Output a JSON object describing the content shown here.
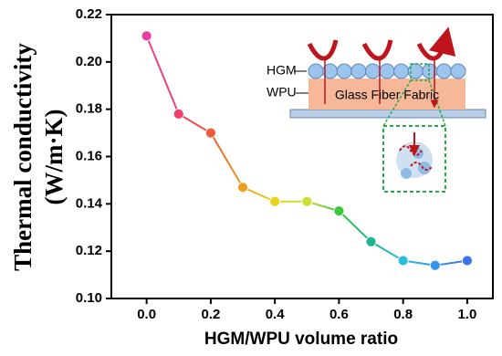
{
  "chart_data": {
    "type": "line",
    "xlabel": "HGM/WPU volume ratio",
    "ylabel": [
      "Thermal conductivity",
      "(W/m·K)"
    ],
    "x": [
      0.0,
      0.1,
      0.2,
      0.3,
      0.4,
      0.5,
      0.6,
      0.7,
      0.8,
      0.9,
      1.0
    ],
    "values": [
      0.211,
      0.178,
      0.17,
      0.147,
      0.141,
      0.141,
      0.137,
      0.124,
      0.116,
      0.114,
      0.116
    ],
    "point_colors": [
      "#e83f9e",
      "#f0406c",
      "#f05a3a",
      "#f0a020",
      "#e8d41c",
      "#c8e030",
      "#3cc83c",
      "#1eb48c",
      "#2cbce0",
      "#3494f0",
      "#3a72f0"
    ],
    "xlim": [
      -0.11,
      1.08
    ],
    "ylim": [
      0.1,
      0.22
    ],
    "xticks": [
      {
        "value": 0,
        "label": "0.0"
      },
      {
        "value": 0.2,
        "label": "0.2"
      },
      {
        "value": 0.4,
        "label": "0.4"
      },
      {
        "value": 0.6,
        "label": "0.6"
      },
      {
        "value": 0.8,
        "label": "0.8"
      },
      {
        "value": 1,
        "label": "1.0"
      }
    ],
    "yticks": [
      {
        "value": 0.1,
        "label": "0.10"
      },
      0.12,
      0.14,
      0.16,
      0.18,
      {
        "value": 0.2,
        "label": "0.20"
      },
      0.22
    ],
    "annotations": [
      "HGM",
      "WPU",
      "Glass Fiber Fabric"
    ]
  }
}
